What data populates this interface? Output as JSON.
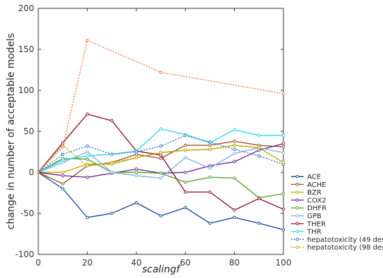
{
  "chart_data": {
    "type": "line",
    "xlabel": "scalingf",
    "ylabel": "change in number of acceptable models",
    "xlim": [
      0,
      100
    ],
    "ylim": [
      -100,
      200
    ],
    "xticks": [
      0,
      20,
      40,
      60,
      80,
      100
    ],
    "yticks": [
      -100,
      -50,
      0,
      50,
      100,
      150,
      200
    ],
    "legend_position": "bottom-right",
    "series": [
      {
        "name": "ACE",
        "color": "#1f4e9c",
        "dash": "",
        "x": [
          0,
          10,
          20,
          30,
          40,
          50,
          60,
          70,
          80,
          90,
          100
        ],
        "y": [
          0,
          -20,
          -55,
          -50,
          -37,
          -53,
          -43,
          -62,
          -55,
          -62,
          -70
        ]
      },
      {
        "name": "ACHE",
        "color": "#a0522d",
        "dash": "",
        "x": [
          0,
          10,
          20,
          30,
          40,
          50,
          60,
          70,
          80,
          90,
          100
        ],
        "y": [
          0,
          -14,
          8,
          12,
          22,
          17,
          33,
          33,
          38,
          33,
          31
        ]
      },
      {
        "name": "BZR",
        "color": "#c8a800",
        "dash": "",
        "x": [
          0,
          10,
          20,
          30,
          40,
          50,
          60,
          70,
          80,
          90,
          100
        ],
        "y": [
          0,
          0,
          10,
          10,
          18,
          24,
          27,
          28,
          33,
          30,
          12
        ]
      },
      {
        "name": "COX2",
        "color": "#6a2c91",
        "dash": "",
        "x": [
          0,
          10,
          20,
          30,
          40,
          50,
          60,
          70,
          80,
          90,
          100
        ],
        "y": [
          0,
          -4,
          -6,
          -1,
          4,
          -1,
          0,
          8,
          13,
          27,
          35
        ]
      },
      {
        "name": "DHFR",
        "color": "#5aa02c",
        "dash": "",
        "x": [
          0,
          10,
          20,
          30,
          40,
          50,
          60,
          70,
          80,
          90,
          100
        ],
        "y": [
          0,
          17,
          16,
          0,
          0,
          -1,
          -12,
          -6,
          -7,
          -31,
          -26
        ]
      },
      {
        "name": "GPB",
        "color": "#7fb3e6",
        "dash": "",
        "x": [
          0,
          10,
          20,
          30,
          40,
          50,
          60,
          70,
          80,
          90,
          100
        ],
        "y": [
          0,
          12,
          25,
          0,
          -4,
          -7,
          18,
          5,
          23,
          30,
          24
        ]
      },
      {
        "name": "THER",
        "color": "#8b1a2b",
        "dash": "",
        "x": [
          0,
          10,
          20,
          30,
          40,
          50,
          60,
          70,
          80,
          90,
          100
        ],
        "y": [
          0,
          36,
          71,
          63,
          26,
          21,
          -24,
          -24,
          -46,
          -32,
          -45
        ]
      },
      {
        "name": "THR",
        "color": "#2fd6ee",
        "dash": "",
        "x": [
          0,
          10,
          20,
          30,
          40,
          50,
          60,
          70,
          80,
          90,
          100
        ],
        "y": [
          0,
          15,
          20,
          22,
          26,
          53,
          46,
          36,
          52,
          45,
          45
        ]
      },
      {
        "name": "hepatotoxicity (49 desc.)",
        "color": "#2f6fd1",
        "dash": "2,2",
        "x": [
          0,
          10,
          20,
          30,
          40,
          50,
          60,
          70,
          80,
          90,
          100
        ],
        "y": [
          0,
          22,
          32,
          22,
          25,
          32,
          45,
          37,
          28,
          20,
          10
        ]
      },
      {
        "name": "hepatotoxicity (98 desc.)",
        "color": "#b5a800",
        "dash": "2,2",
        "x": [
          0,
          10,
          20,
          30,
          40,
          50,
          60,
          70,
          80,
          90,
          100
        ],
        "y": [
          0,
          33,
          8,
          12,
          18,
          24,
          27,
          28,
          33,
          30,
          12
        ]
      },
      {
        "name": "",
        "color": "#f07a4a",
        "dash": "2,2",
        "x": [
          0,
          10,
          20,
          50,
          100
        ],
        "y": [
          0,
          31,
          161,
          122,
          96
        ]
      }
    ]
  }
}
